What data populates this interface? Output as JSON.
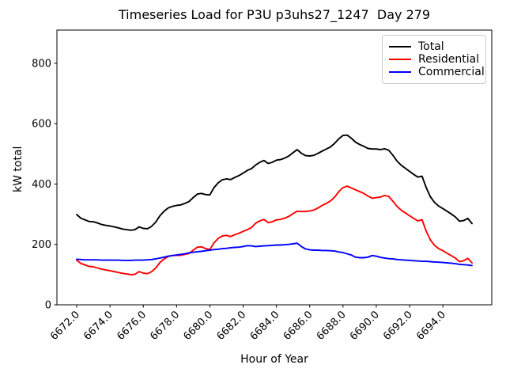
{
  "chart_data": {
    "type": "line",
    "title": "Timeseries Load for P3U p3uhs27_1247  Day 279",
    "xlabel": "Hour of Year",
    "ylabel": "kW total",
    "xlim": [
      6670.81,
      6696.94
    ],
    "ylim": [
      0,
      910
    ],
    "grid": false,
    "legend_position": "upper right",
    "xticks": [
      6672,
      6674,
      6676,
      6678,
      6680,
      6682,
      6684,
      6686,
      6688,
      6690,
      6692,
      6694
    ],
    "xtick_labels": [
      "6672.0",
      "6674.0",
      "6676.0",
      "6678.0",
      "6680.0",
      "6682.0",
      "6684.0",
      "6686.0",
      "6688.0",
      "6690.0",
      "6692.0",
      "6694.0"
    ],
    "xtick_rotation": 45,
    "yticks": [
      0,
      200,
      400,
      600,
      800
    ],
    "ytick_labels": [
      "0",
      "200",
      "400",
      "600",
      "800"
    ],
    "x": [
      6672.0,
      6672.25,
      6672.5,
      6672.75,
      6673.0,
      6673.25,
      6673.5,
      6673.75,
      6674.0,
      6674.25,
      6674.5,
      6674.75,
      6675.0,
      6675.25,
      6675.5,
      6675.75,
      6676.0,
      6676.25,
      6676.5,
      6676.75,
      6677.0,
      6677.25,
      6677.5,
      6677.75,
      6678.0,
      6678.25,
      6678.5,
      6678.75,
      6679.0,
      6679.25,
      6679.5,
      6679.75,
      6680.0,
      6680.25,
      6680.5,
      6680.75,
      6681.0,
      6681.25,
      6681.5,
      6681.75,
      6682.0,
      6682.25,
      6682.5,
      6682.75,
      6683.0,
      6683.25,
      6683.5,
      6683.75,
      6684.0,
      6684.25,
      6684.5,
      6684.75,
      6685.0,
      6685.25,
      6685.5,
      6685.75,
      6686.0,
      6686.25,
      6686.5,
      6686.75,
      6687.0,
      6687.25,
      6687.5,
      6687.75,
      6688.0,
      6688.25,
      6688.5,
      6688.75,
      6689.0,
      6689.25,
      6689.5,
      6689.75,
      6690.0,
      6690.25,
      6690.5,
      6690.75,
      6691.0,
      6691.25,
      6691.5,
      6691.75,
      6692.0,
      6692.25,
      6692.5,
      6692.75,
      6693.0,
      6693.25,
      6693.5,
      6693.75,
      6694.0,
      6694.25,
      6694.5,
      6694.75,
      6695.0,
      6695.25,
      6695.5,
      6695.75
    ],
    "series": [
      {
        "name": "Total",
        "color": "#000000",
        "values": [
          299,
          287,
          281,
          276,
          275,
          271,
          266,
          263,
          261,
          258,
          255,
          251,
          249,
          247,
          249,
          258,
          253,
          252,
          260,
          274,
          295,
          310,
          321,
          326,
          329,
          331,
          336,
          342,
          355,
          367,
          369,
          365,
          364,
          388,
          404,
          414,
          417,
          415,
          422,
          428,
          436,
          445,
          451,
          463,
          472,
          478,
          468,
          472,
          479,
          481,
          486,
          493,
          504,
          514,
          502,
          494,
          493,
          495,
          502,
          509,
          516,
          523,
          535,
          550,
          561,
          562,
          552,
          539,
          531,
          525,
          518,
          516,
          516,
          514,
          517,
          512,
          495,
          476,
          462,
          452,
          442,
          432,
          423,
          426,
          388,
          358,
          339,
          327,
          319,
          310,
          301,
          291,
          277,
          279,
          286,
          269
        ]
      },
      {
        "name": "Residential",
        "color": "#ff0000",
        "values": [
          148,
          137,
          132,
          127,
          126,
          122,
          118,
          115,
          113,
          110,
          107,
          104,
          102,
          100,
          101,
          110,
          105,
          103,
          110,
          122,
          140,
          152,
          160,
          163,
          164,
          164,
          167,
          170,
          181,
          191,
          192,
          186,
          183,
          205,
          220,
          228,
          230,
          226,
          232,
          237,
          243,
          249,
          256,
          270,
          278,
          283,
          272,
          275,
          281,
          283,
          287,
          293,
          302,
          310,
          309,
          309,
          311,
          314,
          321,
          329,
          336,
          344,
          357,
          375,
          388,
          393,
          387,
          381,
          375,
          369,
          360,
          353,
          355,
          357,
          362,
          359,
          343,
          326,
          313,
          304,
          295,
          286,
          278,
          282,
          244,
          215,
          197,
          186,
          179,
          171,
          163,
          155,
          143,
          146,
          154,
          139
        ]
      },
      {
        "name": "Commercial",
        "color": "#0000ff",
        "values": [
          151,
          150,
          149,
          149,
          149,
          149,
          148,
          148,
          148,
          148,
          148,
          147,
          147,
          147,
          148,
          148,
          148,
          149,
          150,
          152,
          155,
          158,
          161,
          163,
          165,
          167,
          169,
          172,
          174,
          176,
          177,
          179,
          181,
          183,
          184,
          186,
          187,
          189,
          190,
          191,
          193,
          196,
          195,
          193,
          194,
          195,
          196,
          197,
          198,
          198,
          199,
          200,
          202,
          204,
          193,
          185,
          182,
          181,
          181,
          180,
          180,
          179,
          178,
          175,
          173,
          169,
          165,
          158,
          156,
          156,
          158,
          163,
          161,
          157,
          155,
          153,
          152,
          150,
          149,
          148,
          147,
          146,
          145,
          144,
          144,
          143,
          142,
          141,
          140,
          139,
          138,
          136,
          134,
          133,
          132,
          130
        ]
      }
    ]
  },
  "legend": {
    "items": [
      {
        "label": "Total",
        "color": "#000000"
      },
      {
        "label": "Residential",
        "color": "#ff0000"
      },
      {
        "label": "Commercial",
        "color": "#0000ff"
      }
    ]
  }
}
